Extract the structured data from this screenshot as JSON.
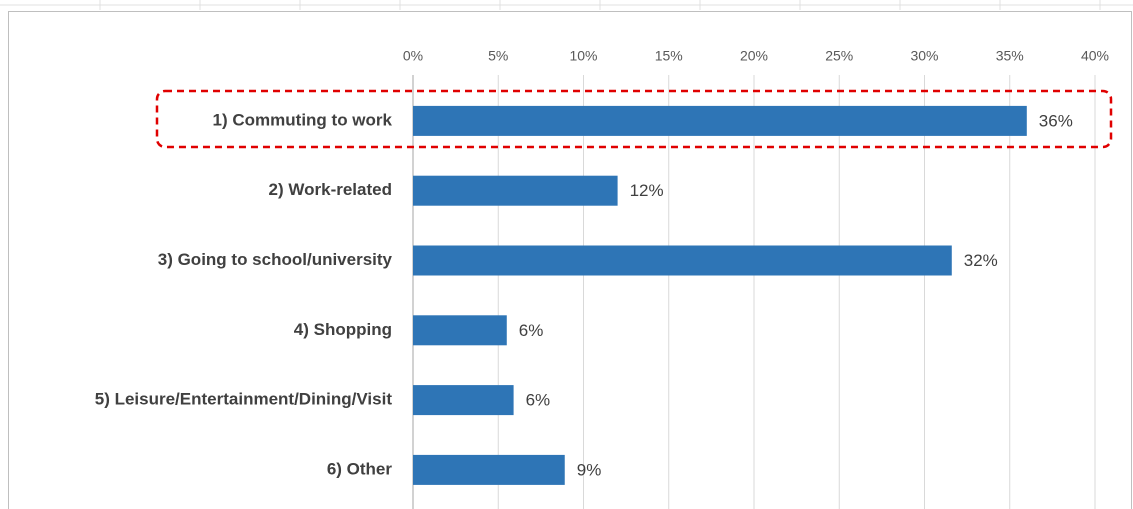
{
  "chart_data": {
    "type": "bar",
    "orientation": "horizontal",
    "categories": [
      "1) Commuting to work",
      "2) Work-related",
      "3) Going to school/university",
      "4) Shopping",
      "5) Leisure/Entertainment/Dining/Visit",
      "6) Other"
    ],
    "values": [
      36,
      12,
      31.6,
      5.5,
      5.9,
      8.9
    ],
    "value_labels": [
      "36%",
      "12%",
      "32%",
      "6%",
      "6%",
      "9%"
    ],
    "color": "#2e75b6",
    "xlim": [
      0,
      40
    ],
    "xticks": [
      {
        "value": 0,
        "label": "0%"
      },
      {
        "value": 5,
        "label": "5%"
      },
      {
        "value": 10,
        "label": "10%"
      },
      {
        "value": 15,
        "label": "15%"
      },
      {
        "value": 20,
        "label": "20%"
      },
      {
        "value": 25,
        "label": "25%"
      },
      {
        "value": 30,
        "label": "30%"
      },
      {
        "value": 35,
        "label": "35%"
      },
      {
        "value": 40,
        "label": "40%"
      }
    ],
    "grid": true
  }
}
